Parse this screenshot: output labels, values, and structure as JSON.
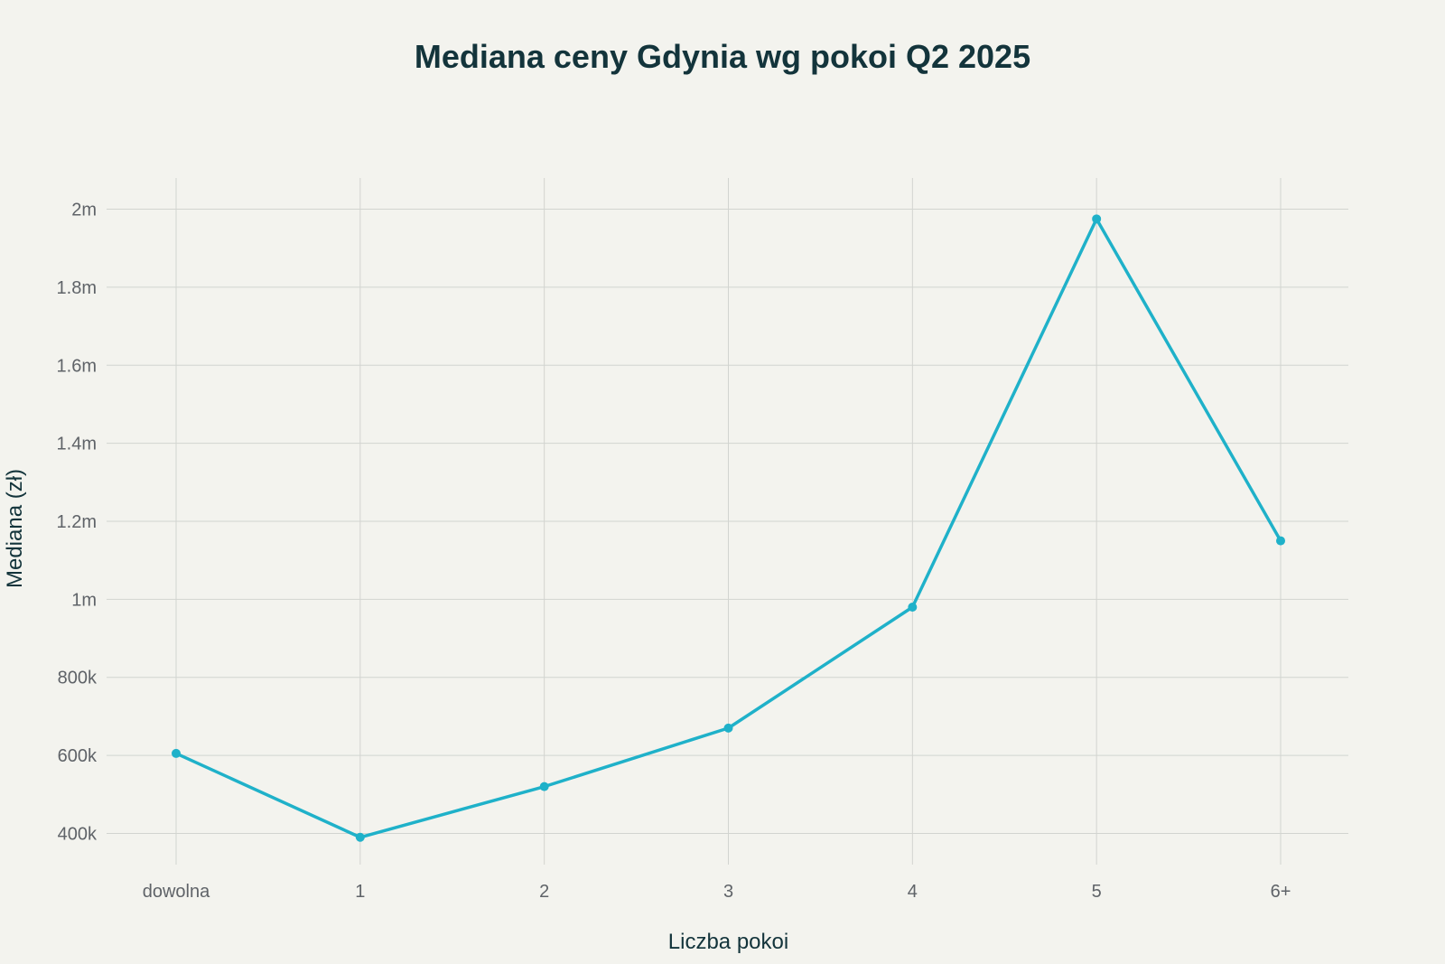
{
  "colors": {
    "background": "#f3f3ee",
    "line": "#1fb1c9",
    "grid": "#d2d4d0",
    "title": "#13343b",
    "tick_text": "#5f6368"
  },
  "chart_data": {
    "type": "line",
    "title": "Mediana ceny Gdynia wg pokoi Q2 2025",
    "xlabel": "Liczba pokoi",
    "ylabel": "Mediana (zł)",
    "categories": [
      "dowolna",
      "1",
      "2",
      "3",
      "4",
      "5",
      "6+"
    ],
    "series": [
      {
        "values": [
          605000,
          390000,
          520000,
          670000,
          980000,
          1975000,
          1150000
        ]
      }
    ],
    "ylim": [
      320000,
      2080000
    ],
    "yticks": [
      400000,
      600000,
      800000,
      1000000,
      1200000,
      1400000,
      1600000,
      1800000,
      2000000
    ],
    "ytick_labels": [
      "400k",
      "600k",
      "800k",
      "1m",
      "1.2m",
      "1.4m",
      "1.6m",
      "1.8m",
      "2m"
    ],
    "grid": true,
    "markers": true
  }
}
